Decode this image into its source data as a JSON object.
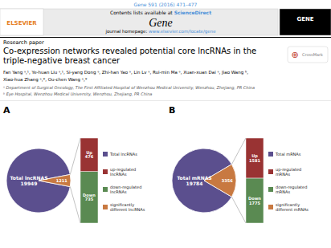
{
  "header": {
    "bg_color": "#ffffff",
    "journal_line": "Gene 591 (2016) 471–477",
    "journal_line_color": "#4a90d9",
    "sciencedirect_prefix": "Contents lists available at ",
    "sciencedirect": "ScienceDirect",
    "link_color": "#4a90d9",
    "journal_name": "Gene",
    "homepage_prefix": "journal homepage: ",
    "homepage": "www.elsevier.com/locate/gene",
    "publisher": "ELSEVIER",
    "cover": "GENE",
    "section_label": "Research paper",
    "title_line1": "Co-expression networks revealed potential core lncRNAs in the",
    "title_line2": "triple-negative breast cancer",
    "crossmark_symbol": "⊕",
    "crossmark": "CrossMark",
    "authors": "Fan Yang ᵃ,¹, Ye-huan Liu ᵃ,¹, Si-yang Dong ᵃ, Zhi-han Yao ᵃ, Lin Lv ᵃ, Rui-min Ma ᵃ, Xuan-xuan Dai ᵃ, Jiao Wang ᵇ,",
    "authors2": "Xiao-hua Zhang ᵃ,*, Ou-chen Wang ᵃ,*",
    "affil1": "ᵃ Department of Surgical Oncology, The First Affiliated Hospital of Wenzhou Medical University, Wenzhou, Zhejiang, PR China",
    "affil2": "ᵇ Eye Hospital, Wenzhou Medical University, Wenzhou, Zhejiang, PR China"
  },
  "chart_data": [
    {
      "type": "pie",
      "title": "A",
      "categories": [
        "Total lncRNAs",
        "significantly\ndifferent lncRNAs"
      ],
      "values": [
        18738,
        1211
      ],
      "colors": [
        "#5b4f8e",
        "#c87941"
      ],
      "annotations": [
        "Total lncRNAS\n19949",
        "1211"
      ],
      "tick_labels": false
    },
    {
      "type": "bar",
      "stacked": true,
      "categories": [
        null
      ],
      "ylim": [
        0,
        1211
      ],
      "tick_labels": false,
      "data_labels": true,
      "legend": "right",
      "series": [
        {
          "name": "up-regulated\nlncRNAs",
          "color": "#993333",
          "values": [
            476
          ],
          "value_labels": [
            "Up\n476"
          ]
        },
        {
          "name": "down-regulated\nlncRNAs",
          "color": "#5a8a52",
          "values": [
            735
          ],
          "value_labels": [
            "Down\n735"
          ]
        }
      ]
    },
    {
      "type": "pie",
      "title": "B",
      "categories": [
        "Total mRNAs",
        "significantly\ndifferent mRNAs"
      ],
      "values": [
        16428,
        3356
      ],
      "colors": [
        "#5b4f8e",
        "#c87941"
      ],
      "annotations": [
        "Total mRNAS\n19784",
        "3356"
      ],
      "tick_labels": false
    },
    {
      "type": "bar",
      "stacked": true,
      "categories": [
        null
      ],
      "ylim": [
        0,
        3356
      ],
      "tick_labels": false,
      "data_labels": true,
      "legend": "right",
      "series": [
        {
          "name": "up-regulated\nmRNAs",
          "color": "#993333",
          "values": [
            1581
          ],
          "value_labels": [
            "Up\n1581"
          ]
        },
        {
          "name": "down-regulated\nmRNAs",
          "color": "#5a8a52",
          "values": [
            1775
          ],
          "value_labels": [
            "Down\n1775"
          ]
        }
      ]
    }
  ]
}
